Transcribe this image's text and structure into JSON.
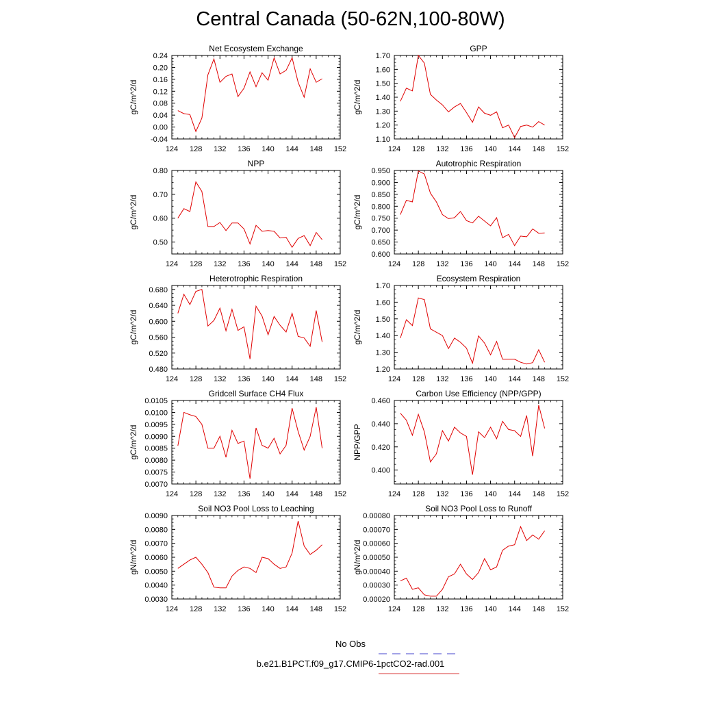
{
  "page": {
    "title": "Central Canada (50-62N,100-80W)"
  },
  "legend": {
    "items": [
      {
        "label": "No Obs",
        "color": "#6a6ad8",
        "dash": true
      },
      {
        "label": "b.e21.B1PCT.f09_g17.CMIP6-1pctCO2-rad.001",
        "color": "#e06060",
        "dash": false
      }
    ]
  },
  "chart_data": [
    {
      "type": "line",
      "title": "Net Ecosystem Exchange",
      "ylabel": "gC/m^2/d",
      "xlim": [
        124,
        152
      ],
      "xticks": [
        124,
        128,
        132,
        136,
        140,
        144,
        148,
        152
      ],
      "ylim": [
        -0.04,
        0.24
      ],
      "yticks": [
        -0.04,
        0.0,
        0.04,
        0.08,
        0.12,
        0.16,
        0.2,
        0.24
      ],
      "ydecimals": 2,
      "series": [
        {
          "color": "#e00000",
          "x": [
            125,
            126,
            127,
            128,
            129,
            130,
            131,
            132,
            133,
            134,
            135,
            136,
            137,
            138,
            139,
            140,
            141,
            142,
            143,
            144,
            145,
            146,
            147,
            148,
            149
          ],
          "y": [
            0.055,
            0.045,
            0.042,
            -0.015,
            0.03,
            0.175,
            0.228,
            0.15,
            0.17,
            0.178,
            0.102,
            0.13,
            0.185,
            0.135,
            0.182,
            0.157,
            0.232,
            0.178,
            0.19,
            0.232,
            0.15,
            0.1,
            0.195,
            0.15,
            0.162
          ]
        }
      ]
    },
    {
      "type": "line",
      "title": "GPP",
      "ylabel": "gC/m^2/d",
      "xlim": [
        124,
        152
      ],
      "xticks": [
        124,
        128,
        132,
        136,
        140,
        144,
        148,
        152
      ],
      "ylim": [
        1.1,
        1.7
      ],
      "yticks": [
        1.1,
        1.2,
        1.3,
        1.4,
        1.5,
        1.6,
        1.7
      ],
      "ydecimals": 2,
      "series": [
        {
          "color": "#e00000",
          "x": [
            125,
            126,
            127,
            128,
            129,
            130,
            131,
            132,
            133,
            134,
            135,
            136,
            137,
            138,
            139,
            140,
            141,
            142,
            143,
            144,
            145,
            146,
            147,
            148,
            149
          ],
          "y": [
            1.37,
            1.465,
            1.445,
            1.7,
            1.645,
            1.42,
            1.38,
            1.345,
            1.295,
            1.33,
            1.355,
            1.29,
            1.22,
            1.33,
            1.285,
            1.27,
            1.295,
            1.18,
            1.2,
            1.11,
            1.19,
            1.2,
            1.185,
            1.225,
            1.2
          ]
        }
      ]
    },
    {
      "type": "line",
      "title": "NPP",
      "ylabel": "gC/m^2/d",
      "xlim": [
        124,
        152
      ],
      "xticks": [
        124,
        128,
        132,
        136,
        140,
        144,
        148,
        152
      ],
      "ylim": [
        0.45,
        0.8
      ],
      "yticks": [
        0.5,
        0.6,
        0.7,
        0.8
      ],
      "ydecimals": 2,
      "series": [
        {
          "color": "#e00000",
          "x": [
            125,
            126,
            127,
            128,
            129,
            130,
            131,
            132,
            133,
            134,
            135,
            136,
            137,
            138,
            139,
            140,
            141,
            142,
            143,
            144,
            145,
            146,
            147,
            148,
            149
          ],
          "y": [
            0.6,
            0.64,
            0.628,
            0.752,
            0.712,
            0.565,
            0.565,
            0.582,
            0.548,
            0.58,
            0.58,
            0.555,
            0.492,
            0.57,
            0.545,
            0.548,
            0.545,
            0.517,
            0.52,
            0.478,
            0.515,
            0.527,
            0.485,
            0.54,
            0.51
          ]
        }
      ]
    },
    {
      "type": "line",
      "title": "Autotrophic Respiration",
      "ylabel": "gC/m^2/d",
      "xlim": [
        124,
        152
      ],
      "xticks": [
        124,
        128,
        132,
        136,
        140,
        144,
        148,
        152
      ],
      "ylim": [
        0.6,
        0.95
      ],
      "yticks": [
        0.6,
        0.65,
        0.7,
        0.75,
        0.8,
        0.85,
        0.9,
        0.95
      ],
      "ydecimals": 3,
      "series": [
        {
          "color": "#e00000",
          "x": [
            125,
            126,
            127,
            128,
            129,
            130,
            131,
            132,
            133,
            134,
            135,
            136,
            137,
            138,
            139,
            140,
            141,
            142,
            143,
            144,
            145,
            146,
            147,
            148,
            149
          ],
          "y": [
            0.765,
            0.825,
            0.818,
            0.948,
            0.935,
            0.855,
            0.818,
            0.765,
            0.748,
            0.752,
            0.778,
            0.74,
            0.73,
            0.758,
            0.738,
            0.718,
            0.752,
            0.668,
            0.682,
            0.635,
            0.675,
            0.672,
            0.705,
            0.687,
            0.688
          ]
        }
      ]
    },
    {
      "type": "line",
      "title": "Heterotrophic Respiration",
      "ylabel": "gC/m^2/d",
      "xlim": [
        124,
        152
      ],
      "xticks": [
        124,
        128,
        132,
        136,
        140,
        144,
        148,
        152
      ],
      "ylim": [
        0.48,
        0.69
      ],
      "yticks": [
        0.48,
        0.52,
        0.56,
        0.6,
        0.64,
        0.68
      ],
      "ydecimals": 3,
      "series": [
        {
          "color": "#e00000",
          "x": [
            125,
            126,
            127,
            128,
            129,
            130,
            131,
            132,
            133,
            134,
            135,
            136,
            137,
            138,
            139,
            140,
            141,
            142,
            143,
            144,
            145,
            146,
            147,
            148,
            149
          ],
          "y": [
            0.62,
            0.668,
            0.642,
            0.675,
            0.68,
            0.588,
            0.602,
            0.633,
            0.576,
            0.63,
            0.577,
            0.586,
            0.505,
            0.638,
            0.613,
            0.566,
            0.612,
            0.59,
            0.573,
            0.62,
            0.562,
            0.558,
            0.537,
            0.627,
            0.548
          ]
        }
      ]
    },
    {
      "type": "line",
      "title": "Ecosystem Respiration",
      "ylabel": "gC/m^2/d",
      "xlim": [
        124,
        152
      ],
      "xticks": [
        124,
        128,
        132,
        136,
        140,
        144,
        148,
        152
      ],
      "ylim": [
        1.2,
        1.7
      ],
      "yticks": [
        1.2,
        1.3,
        1.4,
        1.5,
        1.6,
        1.7
      ],
      "ydecimals": 2,
      "series": [
        {
          "color": "#e00000",
          "x": [
            125,
            126,
            127,
            128,
            129,
            130,
            131,
            132,
            133,
            134,
            135,
            136,
            137,
            138,
            139,
            140,
            141,
            142,
            143,
            144,
            145,
            146,
            147,
            148,
            149
          ],
          "y": [
            1.385,
            1.495,
            1.46,
            1.625,
            1.615,
            1.44,
            1.42,
            1.4,
            1.322,
            1.385,
            1.36,
            1.325,
            1.235,
            1.398,
            1.355,
            1.285,
            1.365,
            1.258,
            1.258,
            1.258,
            1.24,
            1.23,
            1.238,
            1.315,
            1.24
          ]
        }
      ]
    },
    {
      "type": "line",
      "title": "Gridcell Surface CH4 Flux",
      "ylabel": "gC/m^2/d",
      "xlim": [
        124,
        152
      ],
      "xticks": [
        124,
        128,
        132,
        136,
        140,
        144,
        148,
        152
      ],
      "ylim": [
        0.007,
        0.0105
      ],
      "yticks": [
        0.007,
        0.0075,
        0.008,
        0.0085,
        0.009,
        0.0095,
        0.01,
        0.0105
      ],
      "ydecimals": 4,
      "series": [
        {
          "color": "#e00000",
          "x": [
            125,
            126,
            127,
            128,
            129,
            130,
            131,
            132,
            133,
            134,
            135,
            136,
            137,
            138,
            139,
            140,
            141,
            142,
            143,
            144,
            145,
            146,
            147,
            148,
            149
          ],
          "y": [
            0.0086,
            0.01,
            0.0099,
            0.00983,
            0.0095,
            0.0085,
            0.0085,
            0.009,
            0.00812,
            0.00925,
            0.0087,
            0.0088,
            0.00722,
            0.00935,
            0.00862,
            0.0085,
            0.00892,
            0.00826,
            0.00862,
            0.01018,
            0.0092,
            0.00842,
            0.009,
            0.01022,
            0.0085
          ]
        }
      ]
    },
    {
      "type": "line",
      "title": "Carbon Use Efficiency (NPP/GPP)",
      "ylabel": "NPP/GPP",
      "xlim": [
        124,
        152
      ],
      "xticks": [
        124,
        128,
        132,
        136,
        140,
        144,
        148,
        152
      ],
      "ylim": [
        0.388,
        0.46
      ],
      "yticks": [
        0.4,
        0.42,
        0.44,
        0.46
      ],
      "ydecimals": 3,
      "series": [
        {
          "color": "#e00000",
          "x": [
            125,
            126,
            127,
            128,
            129,
            130,
            131,
            132,
            133,
            134,
            135,
            136,
            137,
            138,
            139,
            140,
            141,
            142,
            143,
            144,
            145,
            146,
            147,
            148,
            149
          ],
          "y": [
            0.449,
            0.443,
            0.43,
            0.448,
            0.433,
            0.407,
            0.414,
            0.434,
            0.425,
            0.437,
            0.432,
            0.429,
            0.396,
            0.433,
            0.428,
            0.437,
            0.427,
            0.442,
            0.435,
            0.434,
            0.429,
            0.447,
            0.412,
            0.456,
            0.436
          ]
        }
      ]
    },
    {
      "type": "line",
      "title": "Soil NO3 Pool Loss to Leaching",
      "ylabel": "gN/m^2/d",
      "xlim": [
        124,
        152
      ],
      "xticks": [
        124,
        128,
        132,
        136,
        140,
        144,
        148,
        152
      ],
      "ylim": [
        0.003,
        0.009
      ],
      "yticks": [
        0.003,
        0.004,
        0.005,
        0.006,
        0.007,
        0.008,
        0.009
      ],
      "ydecimals": 4,
      "series": [
        {
          "color": "#e00000",
          "x": [
            125,
            126,
            127,
            128,
            129,
            130,
            131,
            132,
            133,
            134,
            135,
            136,
            137,
            138,
            139,
            140,
            141,
            142,
            143,
            144,
            145,
            146,
            147,
            148,
            149
          ],
          "y": [
            0.0052,
            0.0055,
            0.0058,
            0.006,
            0.0055,
            0.0049,
            0.00385,
            0.0038,
            0.0038,
            0.00465,
            0.00505,
            0.0053,
            0.0052,
            0.0049,
            0.006,
            0.0059,
            0.0055,
            0.0052,
            0.0053,
            0.0063,
            0.0086,
            0.0068,
            0.0062,
            0.0065,
            0.0069
          ]
        }
      ]
    },
    {
      "type": "line",
      "title": "Soil NO3 Pool Loss to Runoff",
      "ylabel": "gN/m^2/d",
      "xlim": [
        124,
        152
      ],
      "xticks": [
        124,
        128,
        132,
        136,
        140,
        144,
        148,
        152
      ],
      "ylim": [
        0.0002,
        0.0008
      ],
      "yticks": [
        0.0002,
        0.0003,
        0.0004,
        0.0005,
        0.0006,
        0.0007,
        0.0008
      ],
      "ydecimals": 5,
      "series": [
        {
          "color": "#e00000",
          "x": [
            125,
            126,
            127,
            128,
            129,
            130,
            131,
            132,
            133,
            134,
            135,
            136,
            137,
            138,
            139,
            140,
            141,
            142,
            143,
            144,
            145,
            146,
            147,
            148,
            149
          ],
          "y": [
            0.00033,
            0.00035,
            0.00027,
            0.00028,
            0.00023,
            0.00022,
            0.00022,
            0.00027,
            0.00036,
            0.00038,
            0.00045,
            0.00038,
            0.00034,
            0.00039,
            0.00049,
            0.00041,
            0.00043,
            0.00055,
            0.00058,
            0.00059,
            0.00072,
            0.00062,
            0.00066,
            0.00063,
            0.00069
          ]
        }
      ]
    }
  ]
}
